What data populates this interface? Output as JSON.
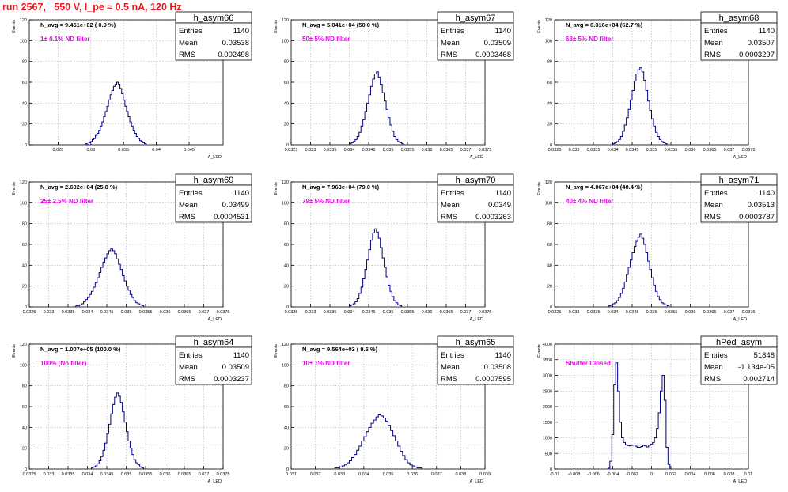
{
  "page_title": "run 2567,   550 V, I_pe ≈ 0.5 nA, 120 Hz",
  "colors": {
    "title": "#e8161b",
    "histogram": "#000080",
    "annotation": "#ee00ee",
    "grid": "#b0b0b0"
  },
  "chart_data": [
    {
      "type": "histogram",
      "name": "h_asym66",
      "stats": {
        "entries_label": "Entries",
        "entries": "1140",
        "mean_label": "Mean",
        "mean": "0.03538",
        "rms_label": "RMS",
        "rms": "0.002498"
      },
      "n_avg": "N_avg = 9.451e+02 ( 0.9 %)",
      "filter_label": "1± 0.1% ND filter",
      "xlabel": "A_LED",
      "ylabel": "Events",
      "xlim": [
        0.0206,
        0.0502
      ],
      "ylim": [
        0,
        120
      ],
      "xticks": [
        0.025,
        0.03,
        0.035,
        0.04,
        0.045
      ],
      "xtick_labels": [
        "0.025",
        "0.03",
        "0.035",
        "0.04",
        "0.045"
      ],
      "yticks": [
        0,
        20,
        40,
        60,
        80,
        100,
        120
      ],
      "bin_start": 0.0292,
      "bin_width": 0.00025,
      "counts": [
        1,
        0,
        2,
        3,
        5,
        6,
        9,
        11,
        14,
        18,
        22,
        27,
        32,
        37,
        43,
        48,
        52,
        56,
        58,
        60,
        58,
        54,
        49,
        43,
        37,
        32,
        27,
        22,
        18,
        14,
        11,
        8,
        6,
        4,
        3,
        2,
        1
      ]
    },
    {
      "type": "histogram",
      "name": "h_asym67",
      "stats": {
        "entries_label": "Entries",
        "entries": "1140",
        "mean_label": "Mean",
        "mean": "0.03509",
        "rms_label": "RMS",
        "rms": "0.0003468"
      },
      "n_avg": "N_avg = 5.041e+04 (50.0 %)",
      "filter_label": "50± 5% ND filter",
      "xlabel": "A_LED",
      "ylabel": "Events",
      "xlim": [
        0.0325,
        0.0375
      ],
      "ylim": [
        0,
        120
      ],
      "xticks": [
        0.0325,
        0.033,
        0.0335,
        0.034,
        0.0345,
        0.035,
        0.0355,
        0.036,
        0.0365,
        0.037,
        0.0375
      ],
      "xtick_labels": [
        "0.0325",
        "0.033",
        "0.0335",
        "0.034",
        "0.0345",
        "0.035",
        "0.0355",
        "0.036",
        "0.0365",
        "0.037",
        "0.0375"
      ],
      "yticks": [
        0,
        20,
        40,
        60,
        80,
        100,
        120
      ],
      "bin_start": 0.034,
      "bin_width": 5e-05,
      "counts": [
        1,
        2,
        3,
        5,
        8,
        12,
        18,
        24,
        32,
        40,
        48,
        56,
        63,
        68,
        70,
        65,
        58,
        50,
        42,
        34,
        26,
        19,
        13,
        8,
        5,
        3,
        2,
        1
      ]
    },
    {
      "type": "histogram",
      "name": "h_asym68",
      "stats": {
        "entries_label": "Entries",
        "entries": "1140",
        "mean_label": "Mean",
        "mean": "0.03507",
        "rms_label": "RMS",
        "rms": "0.0003297"
      },
      "n_avg": "N_avg = 6.316e+04 (62.7 %)",
      "filter_label": "63± 5% ND filter",
      "xlabel": "A_LED",
      "ylabel": "Events",
      "xlim": [
        0.0325,
        0.0375
      ],
      "ylim": [
        0,
        120
      ],
      "xticks": [
        0.0325,
        0.033,
        0.0335,
        0.034,
        0.0345,
        0.035,
        0.0355,
        0.036,
        0.0365,
        0.037,
        0.0375
      ],
      "xtick_labels": [
        "0.0325",
        "0.033",
        "0.0335",
        "0.034",
        "0.0345",
        "0.035",
        "0.0355",
        "0.036",
        "0.0365",
        "0.037",
        "0.0375"
      ],
      "yticks": [
        0,
        20,
        40,
        60,
        80,
        100,
        120
      ],
      "bin_start": 0.034,
      "bin_width": 5e-05,
      "counts": [
        1,
        2,
        3,
        5,
        8,
        13,
        19,
        26,
        34,
        43,
        52,
        61,
        68,
        72,
        74,
        70,
        62,
        52,
        42,
        33,
        25,
        18,
        12,
        8,
        5,
        3,
        2,
        1
      ]
    },
    {
      "type": "histogram",
      "name": "h_asym69",
      "stats": {
        "entries_label": "Entries",
        "entries": "1140",
        "mean_label": "Mean",
        "mean": "0.03499",
        "rms_label": "RMS",
        "rms": "0.0004531"
      },
      "n_avg": "N_avg = 2.602e+04 (25.8 %)",
      "filter_label": "25± 2.5% ND filter",
      "xlabel": "A_LED",
      "ylabel": "Events",
      "xlim": [
        0.0325,
        0.0375
      ],
      "ylim": [
        0,
        120
      ],
      "xticks": [
        0.0325,
        0.033,
        0.0335,
        0.034,
        0.0345,
        0.035,
        0.0355,
        0.036,
        0.0365,
        0.037,
        0.0375
      ],
      "xtick_labels": [
        "0.0325",
        "0.033",
        "0.0335",
        "0.034",
        "0.0345",
        "0.035",
        "0.0355",
        "0.036",
        "0.0365",
        "0.037",
        "0.0375"
      ],
      "yticks": [
        0,
        20,
        40,
        60,
        80,
        100,
        120
      ],
      "bin_start": 0.0337,
      "bin_width": 5e-05,
      "counts": [
        1,
        1,
        2,
        3,
        5,
        7,
        9,
        12,
        15,
        19,
        23,
        28,
        33,
        38,
        43,
        47,
        51,
        54,
        56,
        54,
        51,
        46,
        41,
        36,
        30,
        25,
        20,
        16,
        12,
        9,
        6,
        4,
        3,
        2,
        1
      ]
    },
    {
      "type": "histogram",
      "name": "h_asym70",
      "stats": {
        "entries_label": "Entries",
        "entries": "1140",
        "mean_label": "Mean",
        "mean": "0.0349",
        "rms_label": "RMS",
        "rms": "0.0003263"
      },
      "n_avg": "N_avg = 7.963e+04 (79.0 %)",
      "filter_label": "79± 5% ND filter",
      "xlabel": "A_LED",
      "ylabel": "Events",
      "xlim": [
        0.0325,
        0.0375
      ],
      "ylim": [
        0,
        120
      ],
      "xticks": [
        0.0325,
        0.033,
        0.0335,
        0.034,
        0.0345,
        0.035,
        0.0355,
        0.036,
        0.0365,
        0.037,
        0.0375
      ],
      "xtick_labels": [
        "0.0325",
        "0.033",
        "0.0335",
        "0.034",
        "0.0345",
        "0.035",
        "0.0355",
        "0.036",
        "0.0365",
        "0.037",
        "0.0375"
      ],
      "yticks": [
        0,
        20,
        40,
        60,
        80,
        100,
        120
      ],
      "bin_start": 0.034,
      "bin_width": 5e-05,
      "counts": [
        1,
        2,
        3,
        5,
        8,
        13,
        19,
        27,
        36,
        45,
        55,
        64,
        71,
        75,
        72,
        66,
        57,
        47,
        38,
        29,
        21,
        15,
        10,
        6,
        4,
        2,
        1
      ]
    },
    {
      "type": "histogram",
      "name": "h_asym71",
      "stats": {
        "entries_label": "Entries",
        "entries": "1140",
        "mean_label": "Mean",
        "mean": "0.03513",
        "rms_label": "RMS",
        "rms": "0.0003787"
      },
      "n_avg": "N_avg = 4.067e+04 (40.4 %)",
      "filter_label": "40± 4% ND filter",
      "xlabel": "A_LED",
      "ylabel": "Events",
      "xlim": [
        0.0325,
        0.0375
      ],
      "ylim": [
        0,
        120
      ],
      "xticks": [
        0.0325,
        0.033,
        0.0335,
        0.034,
        0.0345,
        0.035,
        0.0355,
        0.036,
        0.0365,
        0.037,
        0.0375
      ],
      "xtick_labels": [
        "0.0325",
        "0.033",
        "0.0335",
        "0.034",
        "0.0345",
        "0.035",
        "0.0355",
        "0.036",
        "0.0365",
        "0.037",
        "0.0375"
      ],
      "yticks": [
        0,
        20,
        40,
        60,
        80,
        100,
        120
      ],
      "bin_start": 0.0339,
      "bin_width": 5e-05,
      "counts": [
        1,
        2,
        3,
        4,
        6,
        9,
        13,
        18,
        24,
        31,
        38,
        45,
        52,
        58,
        63,
        67,
        70,
        66,
        60,
        52,
        44,
        36,
        28,
        21,
        15,
        10,
        7,
        4,
        3,
        2,
        1
      ]
    },
    {
      "type": "histogram",
      "name": "h_asym64",
      "stats": {
        "entries_label": "Entries",
        "entries": "1140",
        "mean_label": "Mean",
        "mean": "0.03509",
        "rms_label": "RMS",
        "rms": "0.0003237"
      },
      "n_avg": "N_avg = 1.007e+05 (100.0 %)",
      "filter_label": "100% (No filter)",
      "xlabel": "A_LED",
      "ylabel": "Events",
      "xlim": [
        0.0325,
        0.0375
      ],
      "ylim": [
        0,
        120
      ],
      "xticks": [
        0.0325,
        0.033,
        0.0335,
        0.034,
        0.0345,
        0.035,
        0.0355,
        0.036,
        0.0365,
        0.037,
        0.0375
      ],
      "xtick_labels": [
        "0.0325",
        "0.033",
        "0.0335",
        "0.034",
        "0.0345",
        "0.035",
        "0.0355",
        "0.036",
        "0.0365",
        "0.037",
        "0.0375"
      ],
      "yticks": [
        0,
        20,
        40,
        60,
        80,
        100,
        120
      ],
      "bin_start": 0.0341,
      "bin_width": 5e-05,
      "counts": [
        1,
        2,
        3,
        5,
        8,
        12,
        18,
        25,
        34,
        43,
        53,
        62,
        69,
        73,
        70,
        64,
        55,
        45,
        36,
        27,
        20,
        14,
        9,
        6,
        4,
        2,
        1
      ]
    },
    {
      "type": "histogram",
      "name": "h_asym65",
      "stats": {
        "entries_label": "Entries",
        "entries": "1140",
        "mean_label": "Mean",
        "mean": "0.03508",
        "rms_label": "RMS",
        "rms": "0.0007595"
      },
      "n_avg": "N_avg = 9.564e+03 ( 9.5 %)",
      "filter_label": "10± 1% ND filter",
      "xlabel": "A_LED",
      "ylabel": "Events",
      "xlim": [
        0.031,
        0.039
      ],
      "ylim": [
        0,
        120
      ],
      "xticks": [
        0.031,
        0.032,
        0.033,
        0.034,
        0.035,
        0.036,
        0.037,
        0.038,
        0.039
      ],
      "xtick_labels": [
        "0.031",
        "0.032",
        "0.033",
        "0.034",
        "0.035",
        "0.036",
        "0.037",
        "0.038",
        "0.039"
      ],
      "yticks": [
        0,
        20,
        40,
        60,
        80,
        100,
        120
      ],
      "bin_start": 0.0328,
      "bin_width": 0.0001,
      "counts": [
        1,
        1,
        2,
        3,
        4,
        6,
        8,
        11,
        14,
        18,
        22,
        27,
        31,
        36,
        40,
        44,
        47,
        50,
        52,
        51,
        49,
        46,
        42,
        37,
        32,
        27,
        22,
        17,
        13,
        9,
        6,
        4,
        3,
        2,
        1,
        1
      ]
    },
    {
      "type": "histogram",
      "name": "hPed_asym",
      "stats": {
        "entries_label": "Entries",
        "entries": "51848",
        "mean_label": "Mean",
        "mean": "-1.134e-05",
        "rms_label": "RMS",
        "rms": "0.002714"
      },
      "filter_label": "Shutter Closed",
      "xlabel": "A_LED",
      "ylabel": "Events",
      "xlim": [
        -0.01,
        0.01
      ],
      "ylim": [
        0,
        4000
      ],
      "xticks": [
        -0.01,
        -0.008,
        -0.006,
        -0.004,
        -0.002,
        0,
        0.002,
        0.004,
        0.006,
        0.008,
        0.01
      ],
      "xtick_labels": [
        "-0.01",
        "-0.008",
        "-0.006",
        "-0.004",
        "-0.002",
        "0",
        "0.002",
        "0.004",
        "0.006",
        "0.008",
        "0.01"
      ],
      "yticks": [
        0,
        500,
        1000,
        1500,
        2000,
        2500,
        3000,
        3500,
        4000
      ],
      "bin_start": -0.0045,
      "bin_width": 0.0002,
      "counts": [
        30,
        250,
        1100,
        2700,
        3400,
        2500,
        1500,
        1000,
        850,
        780,
        750,
        740,
        760,
        770,
        730,
        700,
        690,
        720,
        760,
        740,
        710,
        760,
        800,
        850,
        1000,
        1300,
        1800,
        2500,
        3000,
        2200,
        700,
        150
      ]
    }
  ]
}
